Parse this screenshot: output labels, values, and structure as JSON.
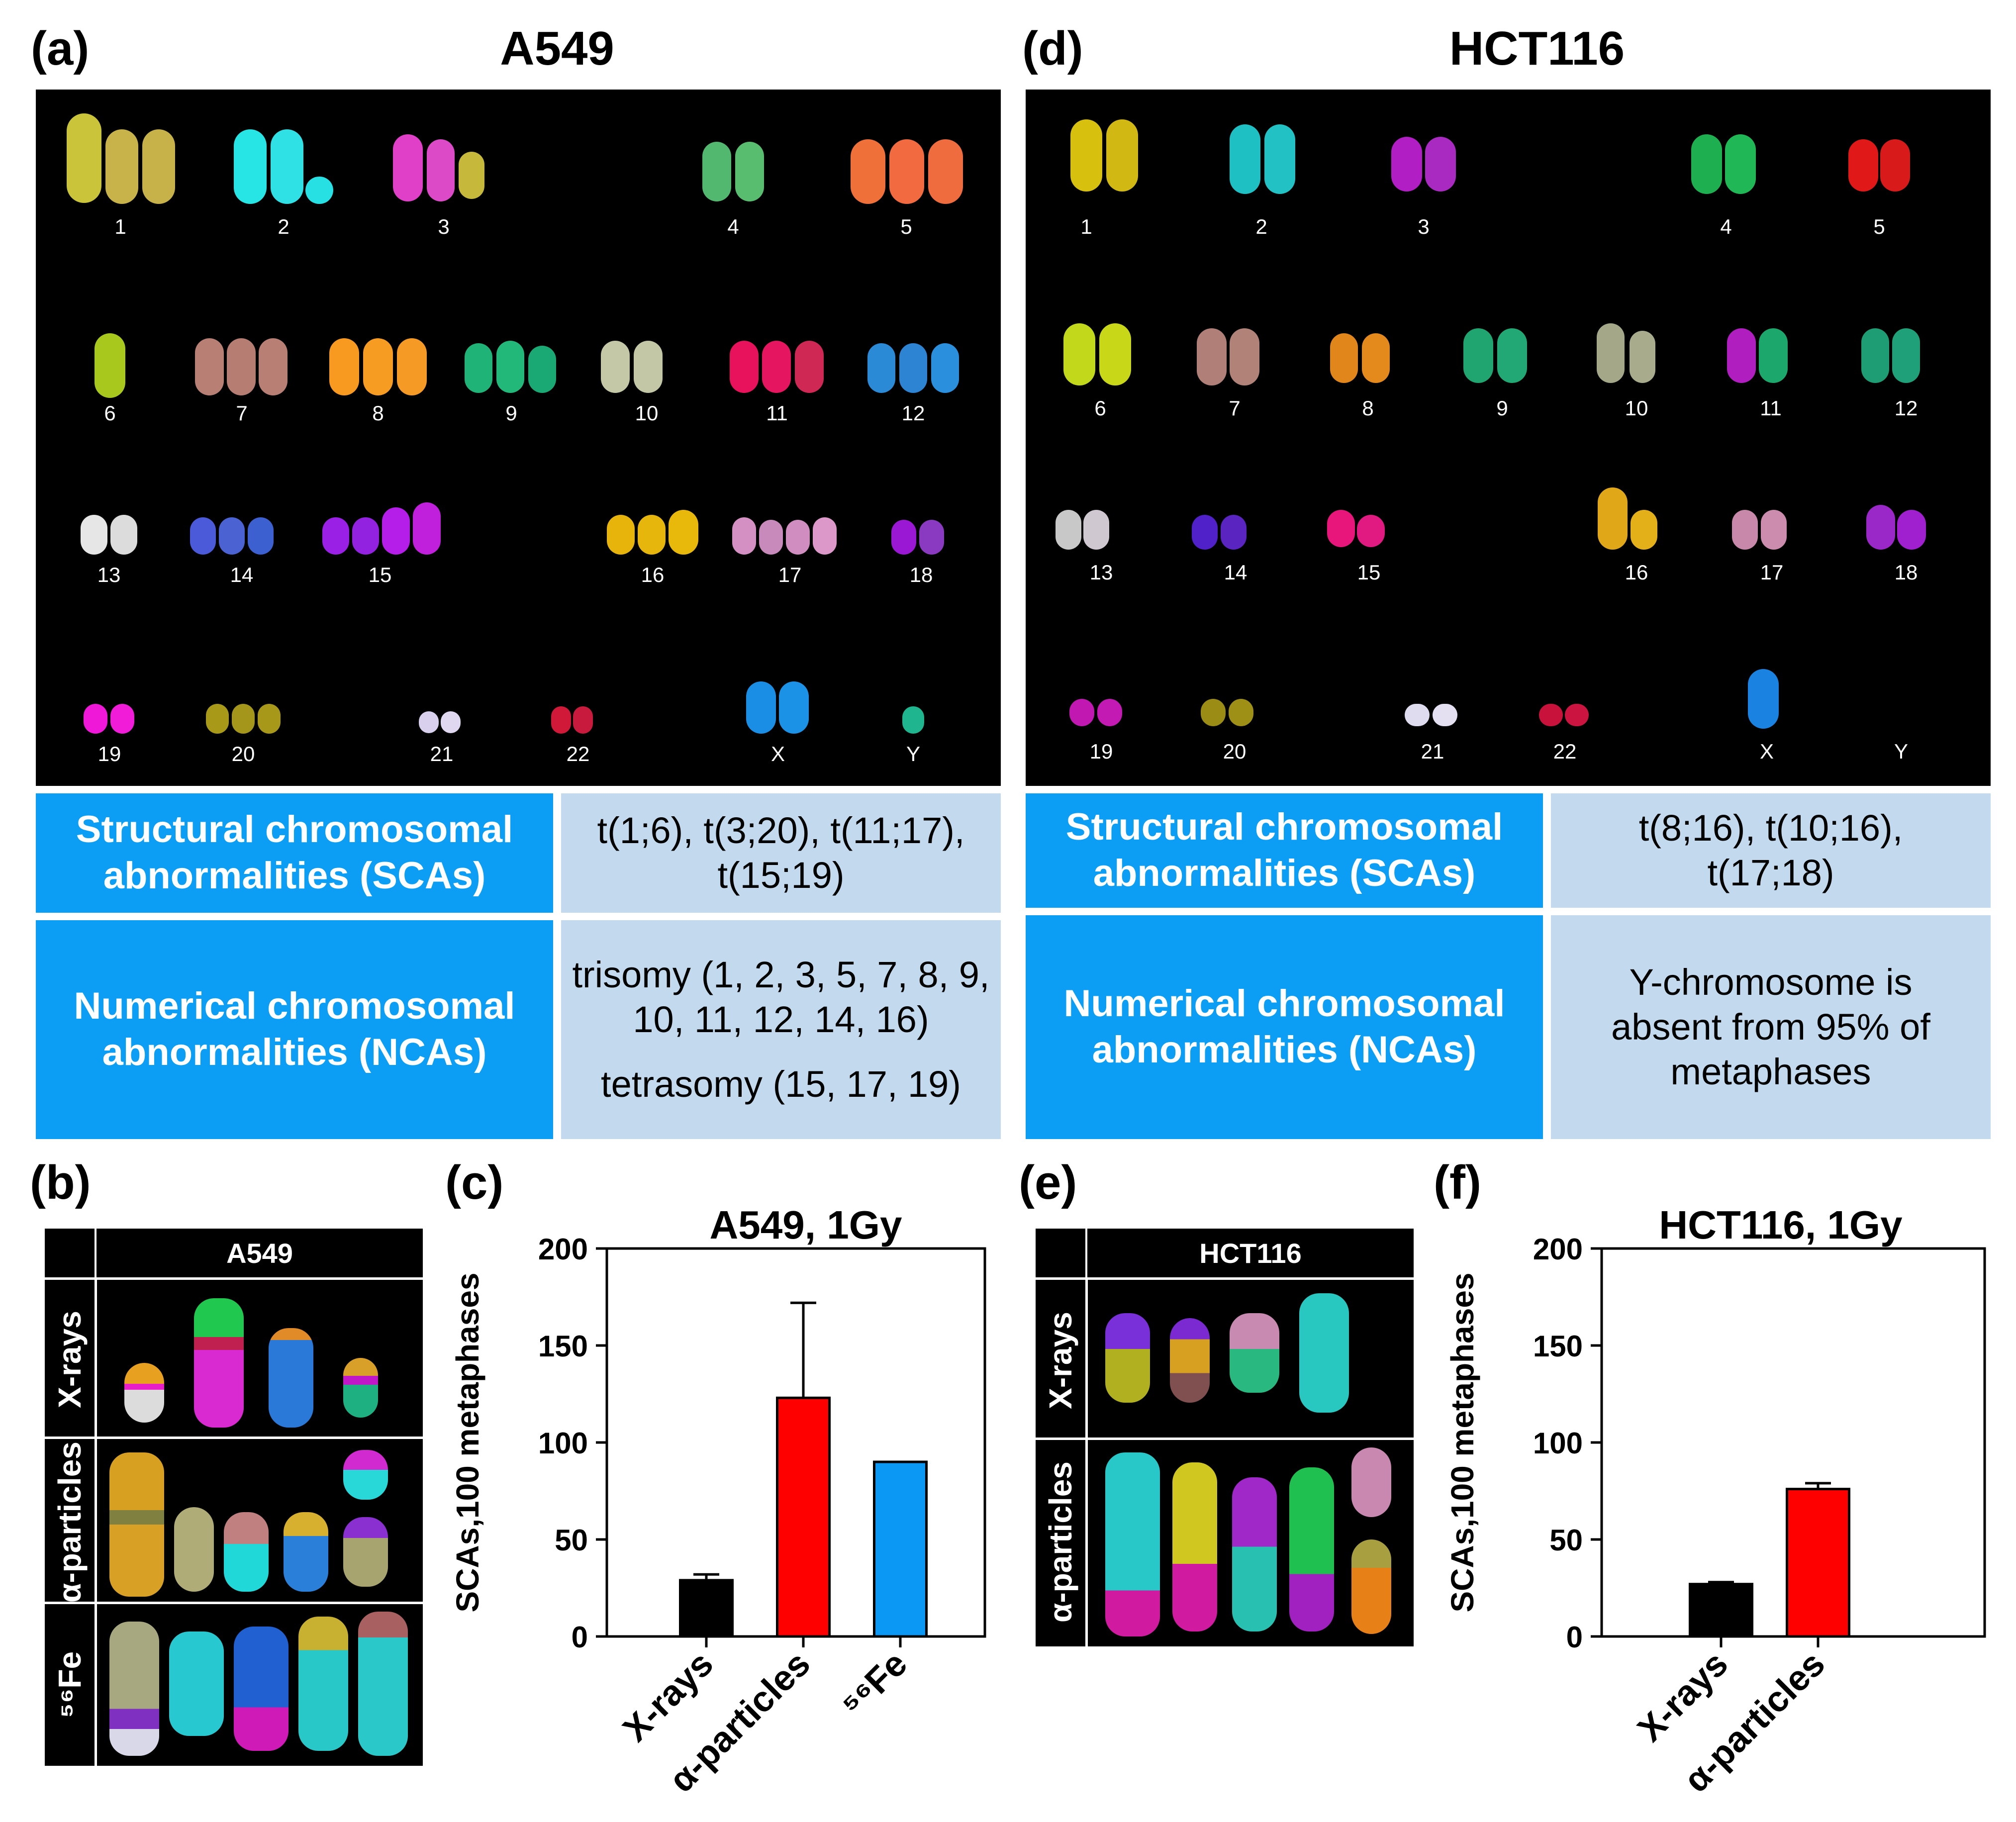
{
  "panels": {
    "a": {
      "label": "(a)",
      "title": "A549"
    },
    "d": {
      "label": "(d)",
      "title": "HCT116"
    },
    "b": {
      "label": "(b)",
      "header": "A549",
      "rows": [
        "X-rays",
        "α-particles",
        "⁵⁶Fe"
      ]
    },
    "c": {
      "label": "(c)"
    },
    "e": {
      "label": "(e)",
      "header": "HCT116",
      "rows": [
        "X-rays",
        "α-particles"
      ]
    },
    "f": {
      "label": "(f)"
    }
  },
  "karyotype_labels": {
    "row1": [
      "1",
      "2",
      "3",
      "4",
      "5"
    ],
    "row2": [
      "6",
      "7",
      "8",
      "9",
      "10",
      "11",
      "12"
    ],
    "row3": [
      "13",
      "14",
      "15",
      "16",
      "17",
      "18"
    ],
    "row4": [
      "19",
      "20",
      "21",
      "22",
      "X",
      "Y"
    ]
  },
  "tables": {
    "a549": {
      "sca_label": "Structural chromosomal abnormalities (SCAs)",
      "sca_value": "t(1;6), t(3;20), t(11;17), t(15;19)",
      "nca_label": "Numerical chromosomal abnormalities (NCAs)",
      "nca_value_1": "trisomy (1, 2, 3, 5, 7, 8, 9, 10, 11, 12, 14, 16)",
      "nca_value_2": "tetrasomy (15, 17, 19)"
    },
    "hct116": {
      "sca_label": "Structural chromosomal abnormalities (SCAs)",
      "sca_value": "t(8;16), t(10;16), t(17;18)",
      "nca_label": "Numerical chromosomal abnormalities (NCAs)",
      "nca_value": "Y-chromosome is absent from 95% of metaphases"
    }
  },
  "chart_data": [
    {
      "type": "bar",
      "title": "A549, 1Gy",
      "ylabel": "SCAs,100 metaphases",
      "xlabel": "",
      "categories": [
        "X-rays",
        "α-particles",
        "⁵⁶Fe"
      ],
      "values": [
        29,
        123,
        90
      ],
      "errors": [
        3,
        49,
        0
      ],
      "colors": [
        "#000000",
        "#ff0000",
        "#0b98f5"
      ],
      "ylim": [
        0,
        200
      ],
      "yticks": [
        0,
        50,
        100,
        150,
        200
      ]
    },
    {
      "type": "bar",
      "title": "HCT116, 1Gy",
      "ylabel": "SCAs,100 metaphases",
      "xlabel": "",
      "categories": [
        "X-rays",
        "α-particles"
      ],
      "values": [
        27,
        76
      ],
      "errors": [
        1,
        3
      ],
      "colors": [
        "#000000",
        "#ff0000"
      ],
      "ylim": [
        0,
        200
      ],
      "yticks": [
        0,
        50,
        100,
        150,
        200
      ]
    }
  ]
}
